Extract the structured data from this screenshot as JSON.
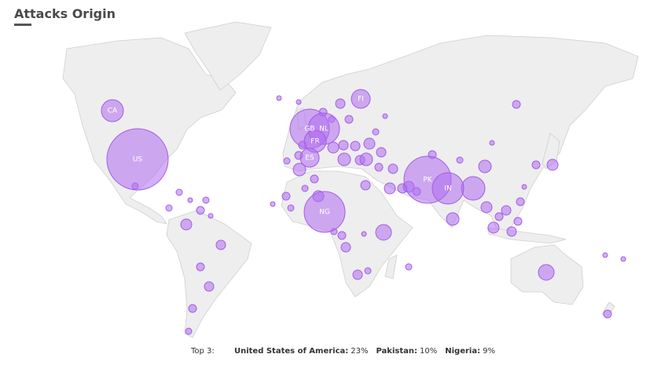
{
  "title": "Attacks Origin",
  "bubbles": [
    {
      "code": "CA"
    },
    {
      "code": "US"
    },
    {
      "code": "GB"
    },
    {
      "code": "NL"
    },
    {
      "code": "FR"
    },
    {
      "code": "ES"
    },
    {
      "code": "FI"
    },
    {
      "code": "NG"
    },
    {
      "code": "PK"
    },
    {
      "code": "IN"
    }
  ],
  "top3": {
    "label": "Top 3:",
    "items": [
      {
        "name": "United States of America:",
        "value": 23,
        "value_label": "23%"
      },
      {
        "name": "Pakistan:",
        "value": 10,
        "value_label": "10%"
      },
      {
        "name": "Nigeria:",
        "value": 9,
        "value_label": "9%"
      }
    ]
  }
}
